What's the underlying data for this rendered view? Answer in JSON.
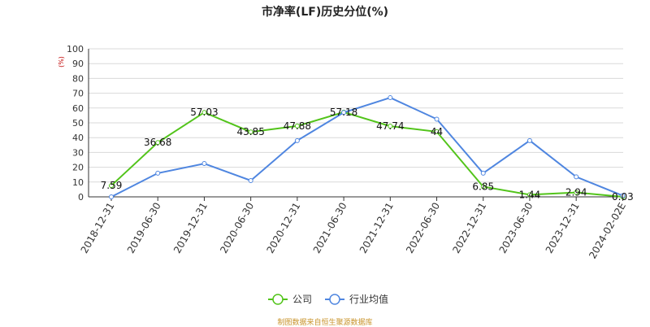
{
  "chart_data": {
    "type": "line",
    "title": "市净率(LF)历史分位(%)",
    "ylabel": "(%)",
    "ylim": [
      0,
      100
    ],
    "yticks": [
      0,
      10,
      20,
      30,
      40,
      50,
      60,
      70,
      80,
      90,
      100
    ],
    "grid": true,
    "legend_position": "bottom-center",
    "categories": [
      "2018-12-31",
      "2019-06-30",
      "2019-12-31",
      "2020-06-30",
      "2020-12-31",
      "2021-06-30",
      "2021-12-31",
      "2022-06-30",
      "2022-12-31",
      "2023-06-30",
      "2023-12-31",
      "2024-02-02E"
    ],
    "series": [
      {
        "name": "公司",
        "color": "#52c41a",
        "values": [
          7.59,
          36.68,
          57.03,
          43.85,
          47.88,
          57.18,
          47.74,
          44,
          6.85,
          1.44,
          2.94,
          0.03
        ],
        "labels": [
          "7.59",
          "36.68",
          "57.03",
          "43.85",
          "47.88",
          "57.18",
          "47.74",
          "44",
          "6.85",
          "1.44",
          "2.94",
          "0.03"
        ]
      },
      {
        "name": "行业均值",
        "color": "#4f86e0",
        "values": [
          0,
          16,
          22.5,
          11,
          38,
          57,
          67,
          52.5,
          16,
          38,
          13.5,
          0.8
        ]
      }
    ]
  },
  "footer": {
    "source": "制图数据来自恒生聚源数据库"
  }
}
